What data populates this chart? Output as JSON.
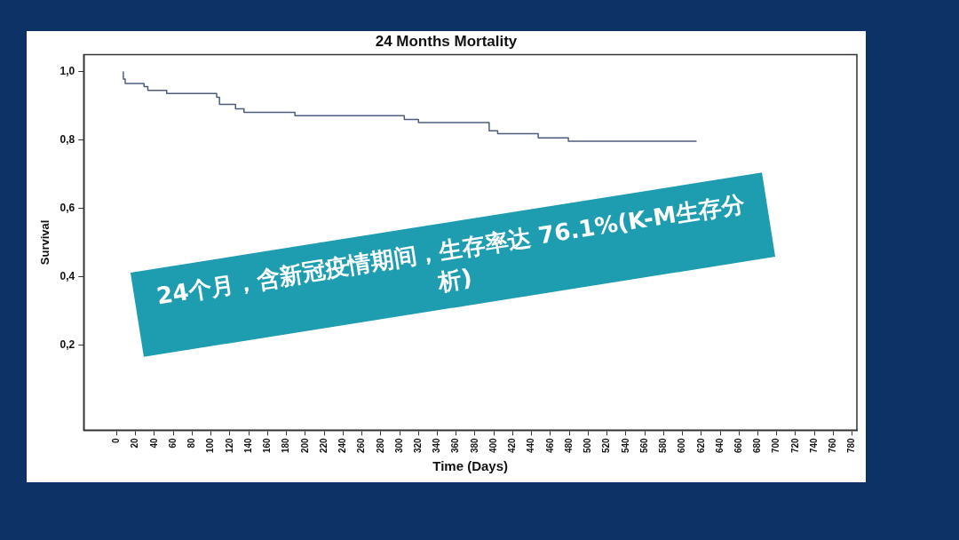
{
  "chart_data": {
    "type": "step",
    "title": "24 Months Mortality",
    "xlabel": "Time (Days)",
    "ylabel": "Survival",
    "annotations": [
      "24个月，含新冠疫情期间，生存率达 76.1%(K-M生存分析)"
    ],
    "x": [
      7,
      9,
      29,
      33,
      53,
      106,
      109,
      126,
      135,
      189,
      305,
      320,
      395,
      404,
      447,
      479,
      599,
      615
    ],
    "series": [
      {
        "color": "#4e5d7e",
        "values": [
          1.0,
          0.978,
          0.965,
          0.956,
          0.945,
          0.936,
          0.925,
          0.904,
          0.891,
          0.881,
          0.871,
          0.86,
          0.851,
          0.827,
          0.818,
          0.806,
          0.796,
          0.796
        ]
      }
    ],
    "xlim": [
      -35,
      785
    ],
    "xticks": [
      0,
      20,
      40,
      60,
      80,
      100,
      120,
      140,
      160,
      180,
      200,
      220,
      240,
      260,
      280,
      300,
      320,
      340,
      360,
      380,
      400,
      420,
      440,
      460,
      480,
      500,
      520,
      540,
      560,
      580,
      600,
      620,
      640,
      660,
      680,
      700,
      720,
      740,
      760,
      780
    ],
    "ylim": [
      -0.05,
      1.05
    ],
    "yticks": [
      {
        "value": 0.2,
        "label": "0,2"
      },
      {
        "value": 0.4,
        "label": "0,4"
      },
      {
        "value": 0.6,
        "label": "0,6"
      },
      {
        "value": 0.8,
        "label": "0,8"
      },
      {
        "value": 1.0,
        "label": "1,0"
      }
    ],
    "grid": false,
    "legend": false,
    "marker": "none",
    "line_style": "solid"
  }
}
